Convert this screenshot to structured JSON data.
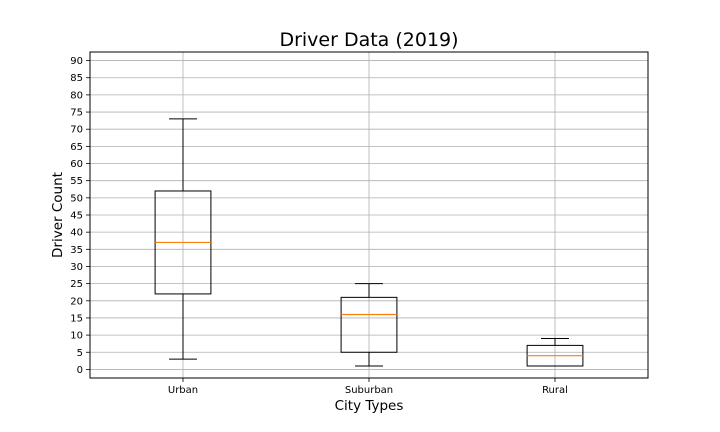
{
  "chart_data": {
    "type": "box",
    "title": "Driver Data (2019)",
    "xlabel": "City Types",
    "ylabel": "Driver Count",
    "ylim": [
      -2.5,
      92.5
    ],
    "yticks": [
      0,
      5,
      10,
      15,
      20,
      25,
      30,
      35,
      40,
      45,
      50,
      55,
      60,
      65,
      70,
      75,
      80,
      85,
      90
    ],
    "grid": true,
    "categories": [
      "Urban",
      "Suburban",
      "Rural"
    ],
    "boxes": [
      {
        "category": "Urban",
        "whisker_low": 3,
        "q1": 22,
        "median": 37,
        "q3": 52,
        "whisker_high": 73
      },
      {
        "category": "Suburban",
        "whisker_low": 1,
        "q1": 5,
        "median": 16,
        "q3": 21,
        "whisker_high": 25
      },
      {
        "category": "Rural",
        "whisker_low": 1,
        "q1": 1,
        "median": 4,
        "q3": 7,
        "whisker_high": 9
      }
    ],
    "colors": {
      "box": "#000000",
      "median": "#ff7f0e",
      "grid": "#b0b0b0"
    }
  }
}
